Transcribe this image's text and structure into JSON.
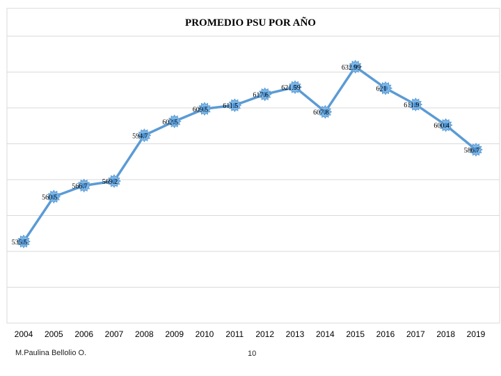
{
  "chart_data": {
    "type": "line",
    "title": "PROMEDIO PSU POR AÑO",
    "xlabel": "",
    "ylabel": "",
    "categories": [
      "2004",
      "2005",
      "2006",
      "2007",
      "2008",
      "2009",
      "2010",
      "2011",
      "2012",
      "2013",
      "2014",
      "2015",
      "2016",
      "2017",
      "2018",
      "2019"
    ],
    "x_points": [
      2004,
      2005,
      2006,
      2007,
      2008,
      2009,
      2010,
      2011,
      2012,
      2013,
      2014,
      2015,
      2016,
      2017,
      2018,
      2019
    ],
    "x_range": [
      2004,
      2019
    ],
    "series": [
      {
        "values": [
          535.5,
          560.5,
          566.7,
          569.2,
          594.7,
          602.5,
          609.5,
          611.5,
          617.6,
          621.59,
          607.8,
          632.99,
          621,
          611.9,
          600.4,
          586.7
        ],
        "labels": [
          "535.5",
          "560.5",
          "566.7",
          "569.2",
          "594.7",
          "602.5",
          "609.5",
          "611.5",
          "617.6",
          "621.59",
          "607.8",
          "632.99",
          "621",
          "611.9",
          "600.4",
          "586.7"
        ],
        "color": "#5b9bd5"
      }
    ],
    "ylim": [
      490,
      650
    ],
    "grid": true,
    "legend": "none"
  },
  "footer": {
    "author": "M.Paulina Bellolio O.",
    "page_number": "10"
  }
}
